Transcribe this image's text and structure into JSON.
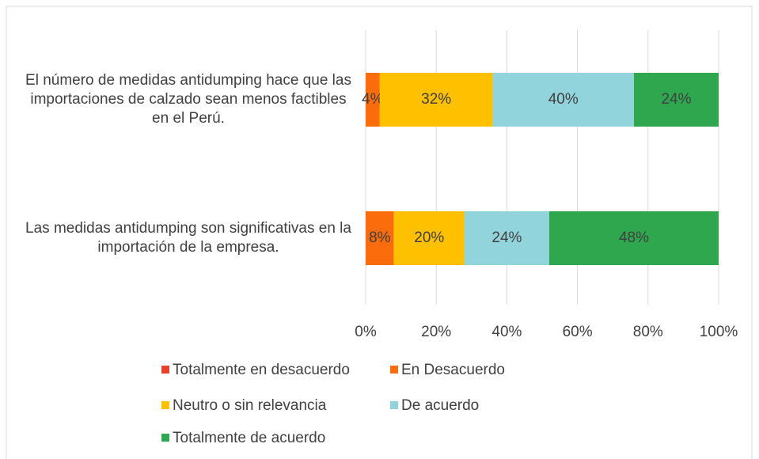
{
  "chart_data": {
    "type": "stacked_barh",
    "categories": [
      "El número de medidas antidumping hace que las importaciones de calzado sean menos factibles en el Perú.",
      "Las medidas antidumping son significativas en la importación de la empresa."
    ],
    "series": [
      {
        "name": "Totalmente en desacuerdo",
        "color": "#e8412c",
        "values": [
          0,
          0
        ]
      },
      {
        "name": "En Desacuerdo",
        "color": "#fb6c0c",
        "values": [
          4,
          8
        ],
        "value_labels": [
          "4%",
          "8%"
        ]
      },
      {
        "name": "Neutro o sin relevancia",
        "color": "#ffc000",
        "values": [
          32,
          20
        ],
        "value_labels": [
          "32%",
          "20%"
        ]
      },
      {
        "name": "De acuerdo",
        "color": "#92d4dc",
        "values": [
          40,
          24
        ],
        "value_labels": [
          "40%",
          "24%"
        ]
      },
      {
        "name": "Totalmente de acuerdo",
        "color": "#2ea74f",
        "values": [
          24,
          48
        ],
        "value_labels": [
          "24%",
          "48%"
        ]
      }
    ],
    "xlim": [
      0,
      100
    ],
    "xticks": [
      {
        "value": 0,
        "label": "0%"
      },
      {
        "value": 20,
        "label": "20%"
      },
      {
        "value": 40,
        "label": "40%"
      },
      {
        "value": 60,
        "label": "60%"
      },
      {
        "value": 80,
        "label": "80%"
      },
      {
        "value": 100,
        "label": "100%"
      }
    ],
    "grid": true
  }
}
